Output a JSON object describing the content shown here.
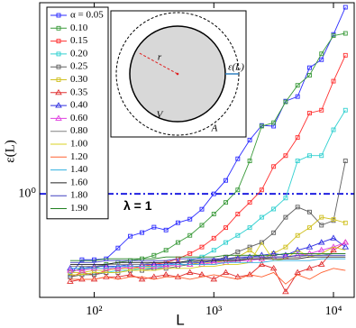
{
  "chart_data": {
    "type": "line",
    "xlabel": "L",
    "ylabel": "ε(L)",
    "xscale": "log",
    "yscale": "log",
    "xlim": [
      35,
      14900
    ],
    "ylim": [
      0.28,
      10.5
    ],
    "xticks": [
      {
        "value": 100,
        "label": "10²"
      },
      {
        "value": 1000,
        "label": "10³"
      },
      {
        "value": 10000,
        "label": "10⁴"
      }
    ],
    "yticks": [
      {
        "value": 1,
        "label": "10⁰"
      }
    ],
    "hline": {
      "value": 1,
      "label": "λ = 1",
      "color": "#2020e0"
    },
    "legend": "upper left",
    "annotations": [
      "r",
      "V",
      "A",
      "ε(L)"
    ],
    "x": [
      63,
      79,
      100,
      126,
      158,
      200,
      251,
      316,
      398,
      501,
      631,
      794,
      1000,
      1259,
      1585,
      1995,
      2512,
      3162,
      3981,
      5012,
      6310,
      7943,
      10000,
      12589
    ],
    "series": [
      {
        "name": "α = 0.05",
        "color": "#2b2bff",
        "marker": "square",
        "values": [
          0.369,
          0.445,
          0.445,
          0.45,
          0.514,
          0.594,
          0.621,
          0.664,
          0.641,
          0.701,
          0.733,
          0.828,
          1.0,
          1.18,
          1.54,
          1.94,
          2.32,
          2.3,
          3.13,
          3.31,
          4.72,
          5.21,
          7.11,
          9.93
        ]
      },
      {
        "name": "0.10",
        "color": "#3a9a3a",
        "marker": "square",
        "values": [
          0.38,
          0.4,
          0.4,
          0.42,
          0.43,
          0.44,
          0.45,
          0.47,
          0.5,
          0.55,
          0.6,
          0.68,
          0.78,
          0.9,
          1.05,
          1.5,
          2.3,
          2.4,
          3.1,
          3.8,
          4.3,
          5.6,
          7.0,
          7.2
        ]
      },
      {
        "name": "0.15",
        "color": "#ff3030",
        "marker": "square",
        "values": [
          0.36,
          0.38,
          0.37,
          0.39,
          0.4,
          0.4,
          0.41,
          0.42,
          0.43,
          0.45,
          0.48,
          0.52,
          0.58,
          0.66,
          0.78,
          0.9,
          1.05,
          1.4,
          1.6,
          2.0,
          2.7,
          2.8,
          4.0,
          5.5
        ]
      },
      {
        "name": "0.20",
        "color": "#30d0d0",
        "marker": "square",
        "values": [
          0.37,
          0.37,
          0.38,
          0.38,
          0.39,
          0.39,
          0.4,
          0.4,
          0.41,
          0.42,
          0.44,
          0.46,
          0.5,
          0.55,
          0.6,
          0.66,
          0.75,
          0.83,
          0.95,
          1.5,
          1.6,
          1.6,
          2.2,
          2.8
        ]
      },
      {
        "name": "0.25",
        "color": "#606060",
        "marker": "square",
        "values": [
          0.36,
          0.37,
          0.37,
          0.38,
          0.38,
          0.39,
          0.39,
          0.4,
          0.4,
          0.41,
          0.42,
          0.43,
          0.44,
          0.46,
          0.49,
          0.52,
          0.55,
          0.62,
          0.75,
          0.85,
          0.8,
          0.68,
          0.72,
          1.5
        ]
      },
      {
        "name": "0.30",
        "color": "#d0c020",
        "marker": "square",
        "values": [
          0.38,
          0.38,
          0.39,
          0.39,
          0.4,
          0.4,
          0.4,
          0.41,
          0.41,
          0.42,
          0.42,
          0.43,
          0.43,
          0.44,
          0.46,
          0.5,
          0.45,
          0.48,
          0.52,
          0.6,
          0.66,
          0.75,
          0.73,
          0.7
        ]
      },
      {
        "name": "0.35",
        "color": "#e03030",
        "marker": "triangle",
        "values": [
          0.34,
          0.35,
          0.35,
          0.36,
          0.36,
          0.37,
          0.35,
          0.36,
          0.37,
          0.36,
          0.38,
          0.37,
          0.35,
          0.38,
          0.36,
          0.37,
          0.42,
          0.4,
          0.3,
          0.38,
          0.4,
          0.42,
          0.5,
          0.55
        ]
      },
      {
        "name": "0.40",
        "color": "#3030e0",
        "marker": "triangle",
        "values": [
          0.4,
          0.4,
          0.41,
          0.41,
          0.41,
          0.42,
          0.42,
          0.42,
          0.42,
          0.43,
          0.43,
          0.43,
          0.44,
          0.45,
          0.45,
          0.46,
          0.47,
          0.48,
          0.47,
          0.5,
          0.52,
          0.55,
          0.58,
          0.52
        ]
      },
      {
        "name": "0.60",
        "color": "#e040e0",
        "marker": "triangle",
        "values": [
          0.39,
          0.39,
          0.4,
          0.4,
          0.4,
          0.41,
          0.41,
          0.41,
          0.41,
          0.42,
          0.42,
          0.42,
          0.43,
          0.43,
          0.44,
          0.44,
          0.45,
          0.46,
          0.46,
          0.47,
          0.48,
          0.5,
          0.52,
          0.55
        ]
      },
      {
        "name": "0.80",
        "color": "#808080",
        "marker": "none",
        "values": [
          0.41,
          0.41,
          0.41,
          0.42,
          0.42,
          0.42,
          0.42,
          0.43,
          0.43,
          0.43,
          0.43,
          0.44,
          0.44,
          0.44,
          0.45,
          0.45,
          0.45,
          0.46,
          0.46,
          0.46,
          0.47,
          0.47,
          0.48,
          0.48
        ]
      },
      {
        "name": "1.00",
        "color": "#d8d020",
        "marker": "none",
        "values": [
          0.37,
          0.37,
          0.38,
          0.38,
          0.38,
          0.39,
          0.39,
          0.39,
          0.4,
          0.4,
          0.4,
          0.41,
          0.41,
          0.42,
          0.42,
          0.43,
          0.55,
          0.44,
          0.45,
          0.5,
          0.46,
          0.48,
          0.52,
          0.5
        ]
      },
      {
        "name": "1.20",
        "color": "#ff6030",
        "marker": "none",
        "values": [
          0.35,
          0.35,
          0.35,
          0.36,
          0.35,
          0.36,
          0.36,
          0.35,
          0.36,
          0.36,
          0.35,
          0.36,
          0.37,
          0.36,
          0.35,
          0.37,
          0.36,
          0.38,
          0.33,
          0.37,
          0.35,
          0.38,
          0.4,
          0.39
        ]
      },
      {
        "name": "1.40",
        "color": "#30b0e0",
        "marker": "none",
        "values": [
          0.4,
          0.4,
          0.4,
          0.4,
          0.41,
          0.41,
          0.41,
          0.41,
          0.42,
          0.42,
          0.42,
          0.42,
          0.42,
          0.43,
          0.43,
          0.43,
          0.43,
          0.44,
          0.44,
          0.44,
          0.44,
          0.45,
          0.45,
          0.45
        ]
      },
      {
        "name": "1.60",
        "color": "#202020",
        "marker": "none",
        "values": [
          0.42,
          0.42,
          0.42,
          0.42,
          0.43,
          0.43,
          0.43,
          0.43,
          0.43,
          0.43,
          0.44,
          0.44,
          0.44,
          0.44,
          0.44,
          0.45,
          0.45,
          0.45,
          0.45,
          0.45,
          0.46,
          0.46,
          0.46,
          0.46
        ]
      },
      {
        "name": "1.80",
        "color": "#4040c0",
        "marker": "none",
        "values": [
          0.43,
          0.43,
          0.43,
          0.44,
          0.44,
          0.44,
          0.44,
          0.44,
          0.44,
          0.45,
          0.45,
          0.45,
          0.45,
          0.45,
          0.46,
          0.46,
          0.46,
          0.46,
          0.46,
          0.47,
          0.47,
          0.47,
          0.47,
          0.47
        ]
      },
      {
        "name": "1.90",
        "color": "#208020",
        "marker": "none",
        "values": [
          0.44,
          0.44,
          0.44,
          0.45,
          0.45,
          0.45,
          0.45,
          0.45,
          0.46,
          0.46,
          0.46,
          0.46,
          0.46,
          0.47,
          0.47,
          0.47,
          0.47,
          0.47,
          0.48,
          0.48,
          0.48,
          0.48,
          0.48,
          0.48
        ]
      }
    ]
  }
}
